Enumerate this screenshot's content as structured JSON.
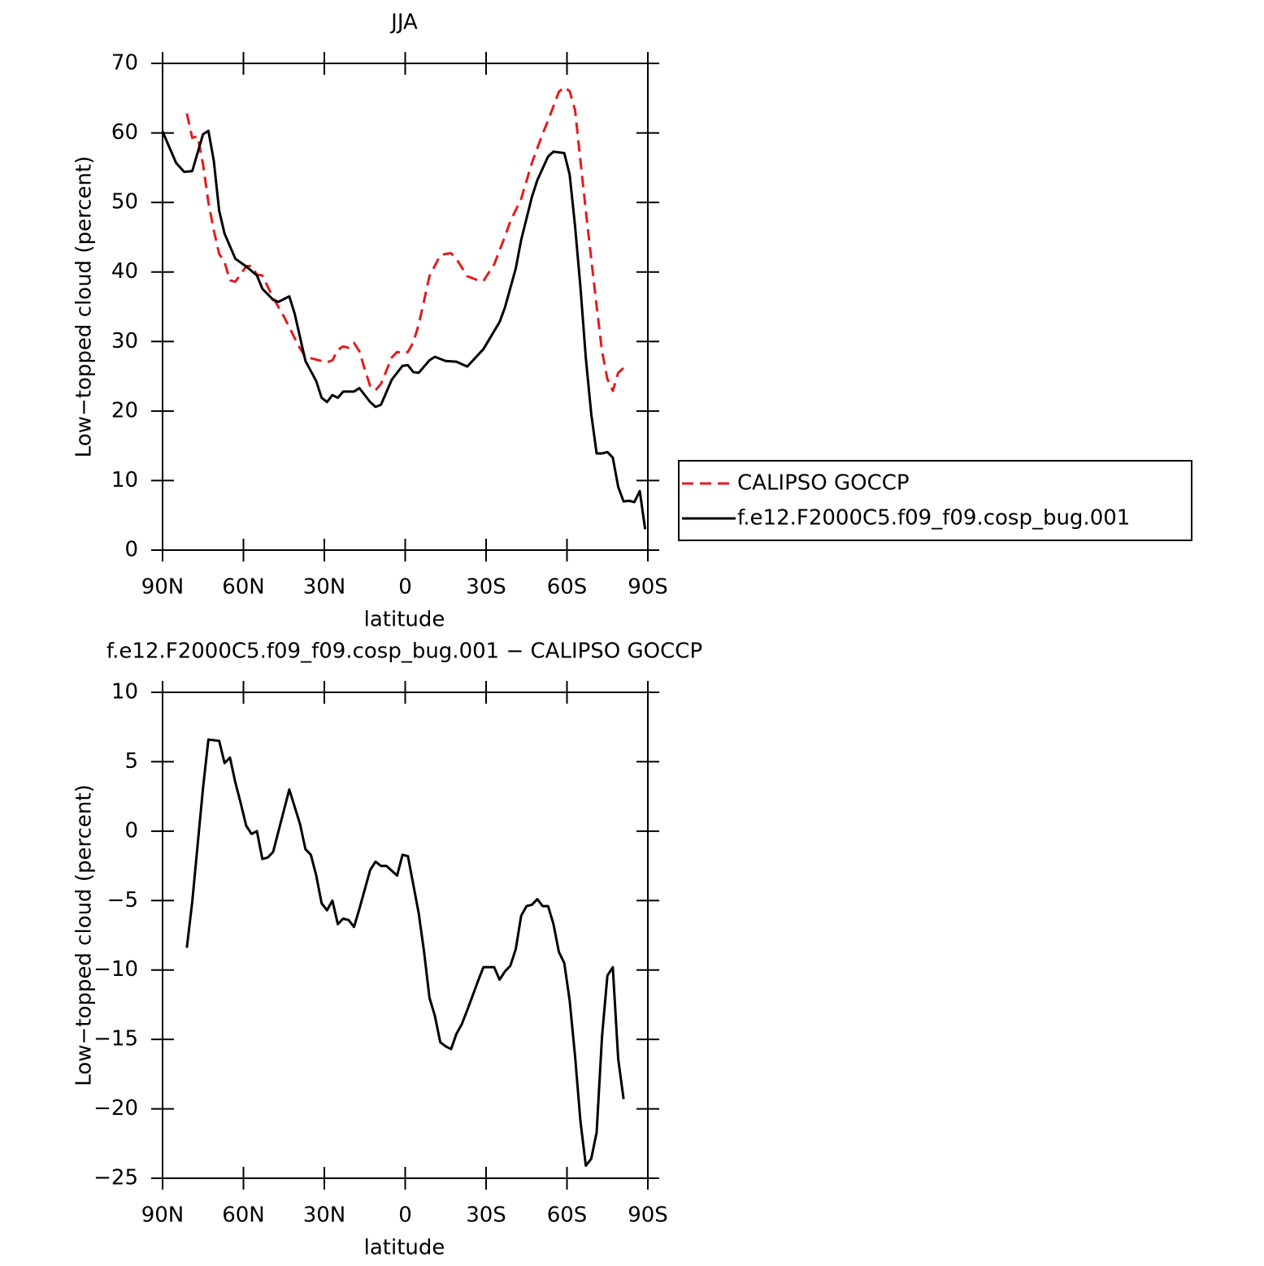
{
  "chart_data": [
    {
      "type": "line",
      "title": "JJA",
      "xlabel": "latitude",
      "ylabel": "Low−topped cloud (percent)",
      "xlim": [
        90,
        -90
      ],
      "xticks": [
        {
          "value": 90,
          "label": "90N"
        },
        {
          "value": 60,
          "label": "60N"
        },
        {
          "value": 30,
          "label": "30N"
        },
        0,
        {
          "value": -30,
          "label": "30S"
        },
        {
          "value": -60,
          "label": "60S"
        },
        {
          "value": -90,
          "label": "90S"
        }
      ],
      "ylim": [
        0,
        70
      ],
      "yticks": [
        0,
        10,
        20,
        30,
        40,
        50,
        60,
        70
      ],
      "legend_position": "right",
      "series": [
        {
          "name": "CALIPSO GOCCP",
          "color": "#e41a1c",
          "line_style": "dashed",
          "x": [
            81,
            79,
            77,
            75,
            73,
            71,
            69,
            67,
            65,
            63,
            59,
            57,
            55,
            53,
            49,
            45,
            41,
            39,
            37,
            33,
            29,
            27,
            25,
            23,
            21,
            19,
            17,
            15,
            13,
            11,
            9,
            5,
            3,
            1,
            -1,
            -3,
            -5,
            -9,
            -13,
            -15,
            -17,
            -19,
            -23,
            -27,
            -29,
            -33,
            -37,
            -39,
            -43,
            -47,
            -51,
            -53,
            -57,
            -59,
            -61,
            -63,
            -65,
            -67,
            -69,
            -71,
            -73,
            -75,
            -77,
            -79,
            -81
          ],
          "values": [
            62.8,
            59.3,
            59.5,
            55.5,
            50,
            46,
            42.6,
            41.4,
            38.8,
            38.6,
            40.8,
            40.9,
            39.6,
            39.5,
            36.3,
            33.6,
            30.5,
            29,
            27.8,
            27.4,
            27,
            27.3,
            28.8,
            29.3,
            29.1,
            29.8,
            28.6,
            26,
            23.6,
            23,
            23.9,
            27.7,
            28.5,
            28.3,
            28.5,
            29.9,
            32.4,
            39.4,
            42.4,
            42.6,
            42.7,
            41.9,
            39.4,
            38.8,
            38.7,
            41.1,
            45.1,
            47.3,
            50.5,
            55.7,
            59.9,
            61.8,
            65.9,
            66.6,
            66,
            63.3,
            56,
            48.8,
            41.9,
            35.1,
            28.6,
            24.6,
            22.9,
            25.5,
            26.2
          ]
        },
        {
          "name": "f.e12.F2000C5.f09_f09.cosp_bug.001",
          "color": "#000000",
          "line_style": "solid",
          "x": [
            90,
            85,
            82,
            79,
            75,
            73,
            71,
            69,
            67,
            63,
            59,
            55,
            53,
            49,
            47,
            43,
            41,
            37,
            33,
            31,
            29,
            27,
            25,
            23,
            19,
            17,
            13,
            11,
            9,
            5,
            1,
            -1,
            -3,
            -5,
            -9,
            -11,
            -15,
            -19,
            -23,
            -29,
            -35,
            -37,
            -41,
            -43,
            -47,
            -49,
            -53,
            -55,
            -59,
            -61,
            -63,
            -65,
            -67,
            -69,
            -71,
            -73,
            -75,
            -77,
            -79,
            -81,
            -83,
            -85,
            -87,
            -89
          ],
          "values": [
            60.2,
            55.7,
            54.4,
            54.5,
            59.8,
            60.3,
            56,
            48.8,
            45.5,
            41.9,
            40.8,
            39.5,
            37.6,
            36,
            35.7,
            36.5,
            34,
            27.2,
            24.3,
            21.9,
            21.3,
            22.3,
            21.9,
            22.8,
            22.8,
            23.3,
            21.3,
            20.6,
            20.9,
            24.5,
            26.5,
            26.6,
            25.6,
            25.5,
            27.3,
            27.8,
            27.2,
            27.1,
            26.4,
            28.9,
            32.8,
            34.9,
            40.5,
            44.6,
            50.8,
            53.2,
            56.6,
            57.3,
            57.1,
            54,
            46.6,
            37.8,
            27.6,
            19.6,
            13.9,
            13.9,
            14.1,
            13.3,
            9.1,
            7,
            7.1,
            6.9,
            8.5,
            3
          ]
        }
      ]
    },
    {
      "type": "line",
      "title": "f.e12.F2000C5.f09_f09.cosp_bug.001 − CALIPSO GOCCP",
      "xlabel": "latitude",
      "ylabel": "Low−topped cloud (percent)",
      "xlim": [
        90,
        -90
      ],
      "xticks": [
        {
          "value": 90,
          "label": "90N"
        },
        {
          "value": 60,
          "label": "60N"
        },
        {
          "value": 30,
          "label": "30N"
        },
        0,
        {
          "value": -30,
          "label": "30S"
        },
        {
          "value": -60,
          "label": "60S"
        },
        {
          "value": -90,
          "label": "90S"
        }
      ],
      "ylim": [
        -25,
        10
      ],
      "yticks": [
        {
          "value": -25,
          "label": "−25"
        },
        {
          "value": -20,
          "label": "−20"
        },
        {
          "value": -15,
          "label": "−15"
        },
        {
          "value": -10,
          "label": "−10"
        },
        {
          "value": -5,
          "label": "−5"
        },
        0,
        5,
        10
      ],
      "series": [
        {
          "color": "#000000",
          "line_style": "solid",
          "x": [
            81,
            79,
            77,
            75,
            73,
            69,
            67,
            65,
            63,
            61,
            59,
            57,
            55,
            53,
            51,
            49,
            45,
            43,
            39,
            37,
            35,
            33,
            31,
            29,
            27,
            25,
            23,
            21,
            19,
            17,
            13,
            11,
            9,
            7,
            3,
            1,
            -1,
            -5,
            -7,
            -9,
            -11,
            -13,
            -15,
            -17,
            -19,
            -21,
            -23,
            -27,
            -29,
            -33,
            -35,
            -37,
            -39,
            -41,
            -43,
            -45,
            -47,
            -49,
            -51,
            -53,
            -55,
            -57,
            -59,
            -61,
            -63,
            -65,
            -67,
            -69,
            -71,
            -73,
            -75,
            -77,
            -79,
            -81
          ],
          "values": [
            -8.4,
            -5.1,
            -1,
            3.1,
            6.6,
            6.5,
            4.9,
            5.3,
            3.5,
            2,
            0.4,
            -0.2,
            0,
            -2,
            -1.9,
            -1.5,
            1.5,
            3,
            0.5,
            -1.3,
            -1.7,
            -3.2,
            -5.2,
            -5.7,
            -5,
            -6.7,
            -6.3,
            -6.4,
            -6.9,
            -5.6,
            -2.8,
            -2.2,
            -2.5,
            -2.5,
            -3.2,
            -1.7,
            -1.8,
            -5.9,
            -8.7,
            -12,
            -13.3,
            -15.2,
            -15.5,
            -15.7,
            -14.6,
            -13.9,
            -12.9,
            -10.8,
            -9.8,
            -9.8,
            -10.7,
            -10.1,
            -9.7,
            -8.5,
            -6.1,
            -5.4,
            -5.3,
            -4.9,
            -5.4,
            -5.4,
            -6.7,
            -8.7,
            -9.5,
            -12.2,
            -16.2,
            -20.9,
            -24.1,
            -23.6,
            -21.7,
            -14.8,
            -10.4,
            -9.8,
            -16.4,
            -19.3
          ]
        }
      ]
    }
  ]
}
